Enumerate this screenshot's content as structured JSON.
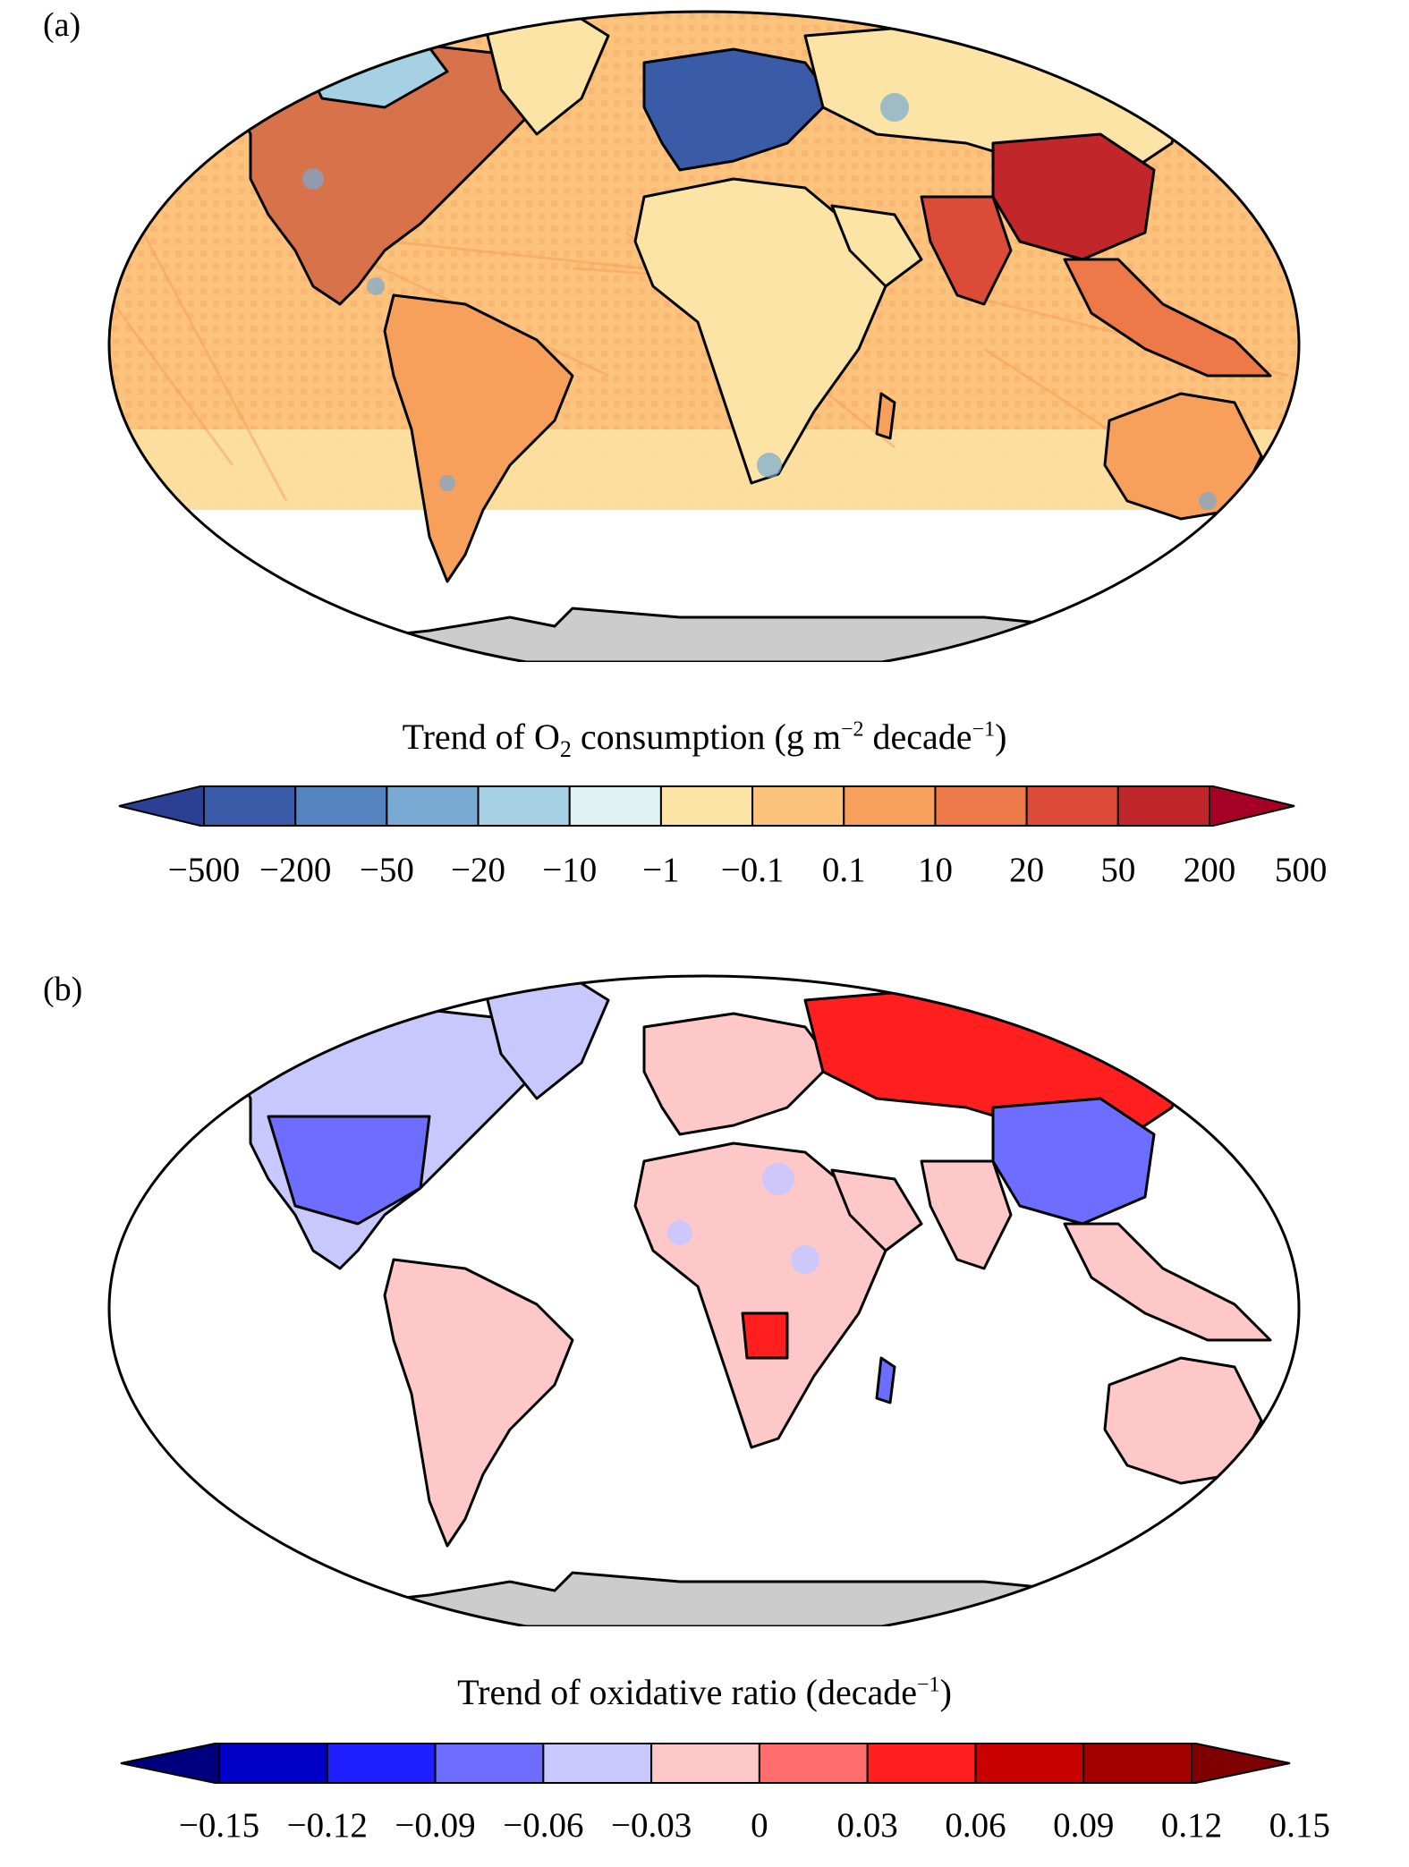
{
  "panels": [
    {
      "label": "(a)",
      "colorbar": {
        "title_parts": [
          "Trend of O",
          "2",
          " consumption (g m",
          "−2",
          " decade",
          "−1",
          ")"
        ],
        "ticks": [
          "−500",
          "−200",
          "−50",
          "−20",
          "−10",
          "−1",
          "−0.1",
          "0.1",
          "10",
          "20",
          "50",
          "200",
          "500"
        ],
        "colors": [
          "#2b3f93",
          "#3a5ca8",
          "#5484bf",
          "#78aad4",
          "#a6d0e4",
          "#dff1f2",
          "#fbe4a6",
          "#fbc37c",
          "#f6a05c",
          "#ed7848",
          "#dc4b38",
          "#c0262a",
          "#a50026"
        ],
        "antarctica_color": "#cccccc"
      }
    },
    {
      "label": "(b)",
      "colorbar": {
        "title_parts": [
          "Trend of oxidative ratio (decade",
          "−1",
          ")"
        ],
        "ticks": [
          "−0.15",
          "−0.12",
          "−0.09",
          "−0.06",
          "−0.03",
          "0",
          "0.03",
          "0.06",
          "0.09",
          "0.12",
          "0.15"
        ],
        "colors": [
          "#00007f",
          "#0000c8",
          "#1f1fff",
          "#6d6dff",
          "#c8c8ff",
          "#ffc8c8",
          "#ff6d6d",
          "#ff1f1f",
          "#c80000",
          "#a30000",
          "#7f0000"
        ],
        "antarctica_color": "#cccccc"
      }
    }
  ]
}
